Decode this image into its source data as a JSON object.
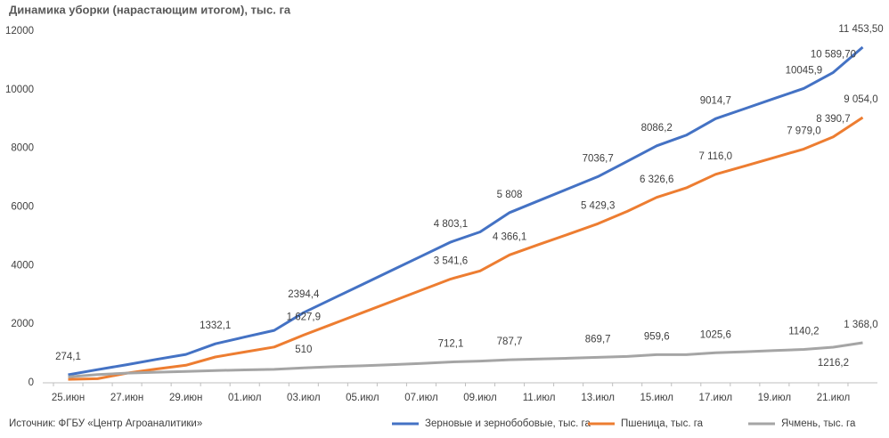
{
  "chart_data": {
    "type": "line",
    "title": "Динамика уборки (нарастающим итогом), тыс. га",
    "source": "Источник: ФГБУ «Центр Агроаналитики»",
    "categories": [
      "25.июн",
      null,
      "27.июн",
      null,
      "29.июн",
      null,
      "01.июл",
      null,
      "03.июл",
      null,
      "05.июл",
      null,
      "07.июл",
      null,
      "09.июл",
      null,
      "11.июл",
      null,
      "13.июл",
      null,
      "15.июл",
      null,
      "17.июл",
      null,
      "19.июл",
      null,
      "21.июл",
      null
    ],
    "ylim": [
      0,
      12000
    ],
    "yticks": [
      0,
      2000,
      4000,
      6000,
      8000,
      10000,
      12000
    ],
    "grid": false,
    "legend": "bottom",
    "series": [
      {
        "name": "Зерновые и зернобобовые, тыс. га",
        "color": "#4472c4",
        "values": [
          274.1,
          450,
          620,
          800,
          970,
          1332.1,
          1560,
          1790,
          2394.4,
          2876,
          3358,
          3840,
          4321,
          4803.1,
          5150,
          5808,
          6218,
          6627,
          7036.7,
          7560,
          8086.2,
          8450,
          9014.7,
          9358,
          9702,
          10045.9,
          10589.7,
          11453.5
        ],
        "value_labels": [
          "274,1",
          null,
          null,
          null,
          null,
          "1332,1",
          null,
          null,
          "2394,4",
          null,
          null,
          null,
          null,
          "4 803,1",
          null,
          "5 808",
          null,
          null,
          "7036,7",
          null,
          "8086,2",
          null,
          "9014,7",
          null,
          null,
          "10045,9",
          "10 589,70",
          "11 453,50"
        ]
      },
      {
        "name": "Пшеница, тыс. га",
        "color": "#ed7d31",
        "values": [
          120,
          140,
          330,
          470,
          600,
          880,
          1050,
          1220,
          1627.9,
          2011,
          2394,
          2777,
          3159,
          3541.6,
          3820,
          4366.1,
          4720,
          5070,
          5429.3,
          5850,
          6326.6,
          6650,
          7116.0,
          7400,
          7690,
          7979.0,
          8390.7,
          9054.0
        ],
        "value_labels": [
          null,
          null,
          null,
          null,
          null,
          null,
          null,
          null,
          "1 627,9",
          null,
          null,
          null,
          null,
          "3 541,6",
          null,
          "4 366,1",
          null,
          null,
          "5 429,3",
          null,
          "6 326,6",
          null,
          "7 116,0",
          null,
          null,
          "7 979,0",
          "8 390,7",
          "9 054,0"
        ]
      },
      {
        "name": "Ячмень, тыс. га",
        "color": "#a5a5a5",
        "values": [
          200,
          280,
          330,
          360,
          390,
          420,
          440,
          460,
          510,
          550,
          580,
          620,
          660,
          712.1,
          740,
          787.7,
          810,
          840,
          869.7,
          900,
          959.6,
          960,
          1025.6,
          1060,
          1100,
          1140.2,
          1216.2,
          1368.0
        ],
        "value_labels": [
          null,
          null,
          null,
          null,
          null,
          null,
          null,
          null,
          "510",
          null,
          null,
          null,
          null,
          "712,1",
          null,
          "787,7",
          null,
          null,
          "869,7",
          null,
          "959,6",
          null,
          "1025,6",
          null,
          null,
          "1140,2",
          "1216,2",
          "1 368,0"
        ]
      }
    ]
  }
}
